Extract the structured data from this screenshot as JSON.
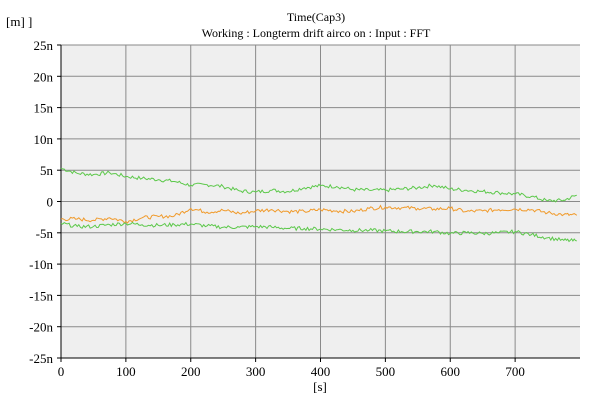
{
  "chart_data": {
    "type": "line",
    "title": "Time(Cap3)",
    "subtitle": "Working : Longterm drift airco on : Input : FFT",
    "ylabel": "[m] ]",
    "xlabel": "[s]",
    "xlim": [
      0,
      800
    ],
    "ylim": [
      -25,
      25
    ],
    "grid": true,
    "x_ticks": [
      "0",
      "100",
      "200",
      "300",
      "400",
      "500",
      "600",
      "700"
    ],
    "y_ticks": [
      "25n",
      "20n",
      "15n",
      "10n",
      "5n",
      "0",
      "-5n",
      "-10n",
      "-15n",
      "-20n",
      "-25n"
    ],
    "x": [
      0,
      25,
      50,
      75,
      100,
      125,
      150,
      175,
      200,
      225,
      250,
      275,
      300,
      325,
      350,
      375,
      400,
      425,
      450,
      475,
      500,
      525,
      550,
      575,
      600,
      625,
      650,
      675,
      700,
      725,
      750,
      775,
      795
    ],
    "series": [
      {
        "color": "#5cc84a",
        "values": [
          5.3,
          4.5,
          4.3,
          4.6,
          4.0,
          3.7,
          3.5,
          3.2,
          2.6,
          2.7,
          2.4,
          1.7,
          1.5,
          1.8,
          1.6,
          2.2,
          2.5,
          2.4,
          1.9,
          1.8,
          1.8,
          2.0,
          2.2,
          2.6,
          2.0,
          1.8,
          1.6,
          1.4,
          1.2,
          0.8,
          0.1,
          0.2,
          1.0
        ]
      },
      {
        "color": "#f09a2a",
        "values": [
          -2.8,
          -2.8,
          -3.0,
          -2.6,
          -3.2,
          -2.6,
          -2.4,
          -2.3,
          -1.1,
          -1.7,
          -1.4,
          -1.9,
          -1.5,
          -1.3,
          -1.6,
          -1.6,
          -1.3,
          -1.5,
          -1.6,
          -1.1,
          -0.9,
          -1.0,
          -1.1,
          -1.2,
          -1.1,
          -1.6,
          -1.5,
          -1.3,
          -1.2,
          -1.3,
          -1.8,
          -2.1,
          -2.2
        ]
      },
      {
        "color": "#5cc84a",
        "values": [
          -3.5,
          -4.0,
          -4.0,
          -3.7,
          -3.5,
          -3.7,
          -3.8,
          -3.7,
          -3.6,
          -3.9,
          -4.1,
          -4.1,
          -4.0,
          -4.1,
          -4.3,
          -4.3,
          -4.4,
          -4.5,
          -4.6,
          -4.6,
          -4.7,
          -4.8,
          -4.8,
          -4.8,
          -5.1,
          -5.0,
          -5.1,
          -5.0,
          -4.8,
          -5.3,
          -5.8,
          -6.2,
          -6.3
        ]
      }
    ]
  }
}
